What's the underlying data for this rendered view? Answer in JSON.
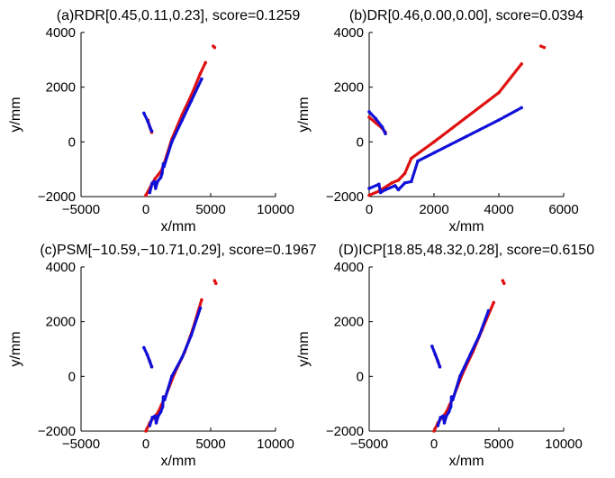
{
  "figure": {
    "colors": {
      "red_series": "#e01010",
      "blue_series": "#1010d8",
      "axes": "#000000",
      "background": "#ffffff"
    }
  },
  "chart_data": [
    {
      "type": "scatter",
      "title": "(a)RDR[0.45,0.11,0.23], score=0.1259",
      "xlabel": "x/mm",
      "ylabel": "y/mm",
      "xlim": [
        -5000,
        10000
      ],
      "ylim": [
        -2000,
        4000
      ],
      "xticks": [
        "−5000",
        "0",
        "5000",
        "10000"
      ],
      "yticks": [
        "−2000",
        "0",
        "2000",
        "4000"
      ],
      "grid": false,
      "series": [
        {
          "color": "#e01010",
          "segments": [
            {
              "x": [
                0,
                350,
                450,
                700,
                1200,
                1400,
                2000,
                2800,
                3500,
                4200,
                4600
              ],
              "y": [
                -1950,
                -1650,
                -1550,
                -1350,
                -1050,
                -800,
                100,
                1000,
                1700,
                2500,
                2900
              ]
            },
            {
              "x": [
                5200,
                5300
              ],
              "y": [
                3500,
                3450
              ]
            },
            {
              "x": [
                150,
                300,
                450
              ],
              "y": [
                800,
                550,
                350
              ]
            }
          ]
        },
        {
          "color": "#1010d8",
          "segments": [
            {
              "x": [
                -150,
                150,
                350,
                450
              ],
              "y": [
                1050,
                750,
                500,
                400
              ]
            },
            {
              "x": [
                300,
                500,
                650,
                750,
                900,
                1150,
                1250,
                1350,
                1400,
                2000,
                2800,
                3500,
                4300
              ],
              "y": [
                -1850,
                -1500,
                -1450,
                -1700,
                -1450,
                -1300,
                -1150,
                -800,
                -900,
                0,
                800,
                1500,
                2300
              ]
            }
          ]
        }
      ]
    },
    {
      "type": "scatter",
      "title": "(b)DR[0.46,0.00,0.00], score=0.0394",
      "xlabel": "x/mm",
      "ylabel": "y/mm",
      "xlim": [
        0,
        6000
      ],
      "ylim": [
        -2000,
        4000
      ],
      "xticks": [
        "0",
        "2000",
        "4000",
        "6000"
      ],
      "yticks": [
        "−2000",
        "0",
        "2000",
        "4000"
      ],
      "grid": false,
      "series": [
        {
          "color": "#e01010",
          "segments": [
            {
              "x": [
                0,
                300,
                700,
                900,
                1100,
                1300,
                2000,
                3000,
                4000,
                4700
              ],
              "y": [
                -1950,
                -1800,
                -1500,
                -1400,
                -1150,
                -600,
                0,
                900,
                1800,
                2850
              ]
            },
            {
              "x": [
                5300,
                5400
              ],
              "y": [
                3500,
                3450
              ]
            },
            {
              "x": [
                0,
                200,
                400,
                500
              ],
              "y": [
                900,
                700,
                500,
                350
              ]
            }
          ]
        },
        {
          "color": "#1010d8",
          "segments": [
            {
              "x": [
                0,
                200,
                400,
                500
              ],
              "y": [
                1100,
                850,
                550,
                300
              ]
            },
            {
              "x": [
                0,
                300,
                350,
                500,
                800,
                900,
                1100,
                1300,
                1500,
                2000,
                3000,
                4000,
                4700
              ],
              "y": [
                -1700,
                -1550,
                -1850,
                -1750,
                -1600,
                -1750,
                -1500,
                -1450,
                -700,
                -400,
                200,
                800,
                1250
              ]
            }
          ]
        }
      ]
    },
    {
      "type": "scatter",
      "title": "(c)PSM[−10.59,−10.71,0.29], score=0.1967",
      "xlabel": "x/mm",
      "ylabel": "y/mm",
      "xlim": [
        -5000,
        10000
      ],
      "ylim": [
        -2000,
        4000
      ],
      "xticks": [
        "−5000",
        "0",
        "5000",
        "10000"
      ],
      "yticks": [
        "−2000",
        "0",
        "2000",
        "4000"
      ],
      "grid": false,
      "series": [
        {
          "color": "#e01010",
          "segments": [
            {
              "x": [
                0,
                300,
                600,
                900,
                1200,
                1500,
                2200,
                3000,
                3600,
                4300
              ],
              "y": [
                -2000,
                -1700,
                -1500,
                -1350,
                -1050,
                -750,
                100,
                900,
                1700,
                2800
              ]
            },
            {
              "x": [
                5300,
                5400
              ],
              "y": [
                3500,
                3400
              ]
            },
            {
              "x": [
                100,
                300,
                450
              ],
              "y": [
                800,
                550,
                350
              ]
            }
          ]
        },
        {
          "color": "#1010d8",
          "segments": [
            {
              "x": [
                -150,
                100,
                300,
                450
              ],
              "y": [
                1050,
                800,
                550,
                350
              ]
            },
            {
              "x": [
                300,
                500,
                700,
                800,
                950,
                1150,
                1300,
                1350,
                1450,
                2000,
                2800,
                3500,
                4200
              ],
              "y": [
                -1800,
                -1500,
                -1450,
                -1700,
                -1450,
                -1300,
                -1100,
                -750,
                -850,
                0,
                700,
                1500,
                2500
              ]
            }
          ]
        }
      ]
    },
    {
      "type": "scatter",
      "title": "(D)ICP[18.85,48.32,0.28], score=0.6150",
      "xlabel": "x/mm",
      "ylabel": "y/mm",
      "xlim": [
        -5000,
        10000
      ],
      "ylim": [
        -2000,
        4000
      ],
      "xticks": [
        "−5000",
        "0",
        "5000",
        "10000"
      ],
      "yticks": [
        "−2000",
        "0",
        "2000",
        "4000"
      ],
      "grid": false,
      "series": [
        {
          "color": "#e01010",
          "segments": [
            {
              "x": [
                0,
                300,
                600,
                900,
                1200,
                1500,
                2200,
                3000,
                3700,
                4600
              ],
              "y": [
                -2000,
                -1700,
                -1500,
                -1350,
                -1050,
                -750,
                100,
                900,
                1700,
                2700
              ]
            },
            {
              "x": [
                5300,
                5400
              ],
              "y": [
                3500,
                3400
              ]
            },
            {
              "x": [
                100,
                300,
                450
              ],
              "y": [
                800,
                550,
                350
              ]
            }
          ]
        },
        {
          "color": "#1010d8",
          "segments": [
            {
              "x": [
                -150,
                100,
                300,
                450
              ],
              "y": [
                1100,
                800,
                550,
                350
              ]
            },
            {
              "x": [
                300,
                500,
                700,
                800,
                950,
                1150,
                1300,
                1350,
                1450,
                2000,
                2800,
                3500,
                4200
              ],
              "y": [
                -1800,
                -1500,
                -1450,
                -1700,
                -1450,
                -1300,
                -1100,
                -750,
                -850,
                0,
                800,
                1500,
                2400
              ]
            }
          ]
        }
      ]
    }
  ]
}
